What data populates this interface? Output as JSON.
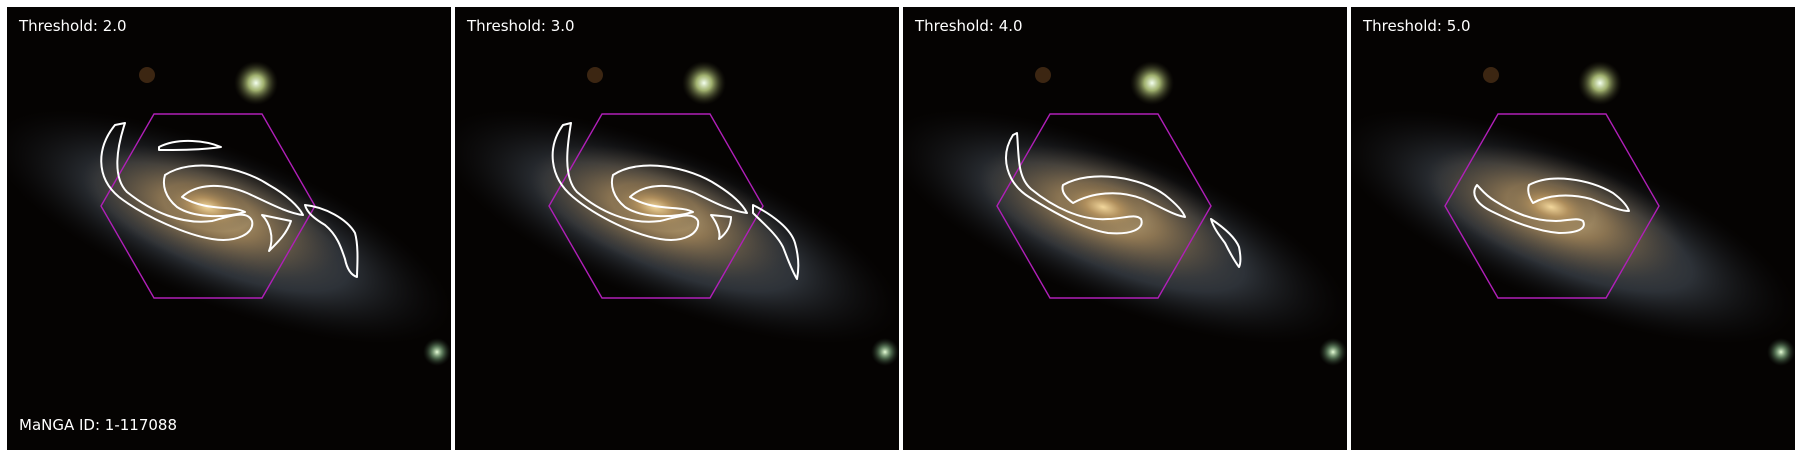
{
  "panels": [
    {
      "threshold_label": "Threshold: 2.0"
    },
    {
      "threshold_label": "Threshold: 3.0"
    },
    {
      "threshold_label": "Threshold: 4.0"
    },
    {
      "threshold_label": "Threshold: 5.0"
    }
  ],
  "manga_id_label": "MaNGA ID: 1-117088",
  "colors": {
    "contour": "#ffffff",
    "hexagon": "#b01fb8",
    "background": "#050302",
    "galaxy_core": "#d8b274",
    "galaxy_halo": "#5b6a78"
  },
  "icons": [
    "galaxy-image",
    "ifu-hexagon",
    "spiral-arm-contour"
  ]
}
